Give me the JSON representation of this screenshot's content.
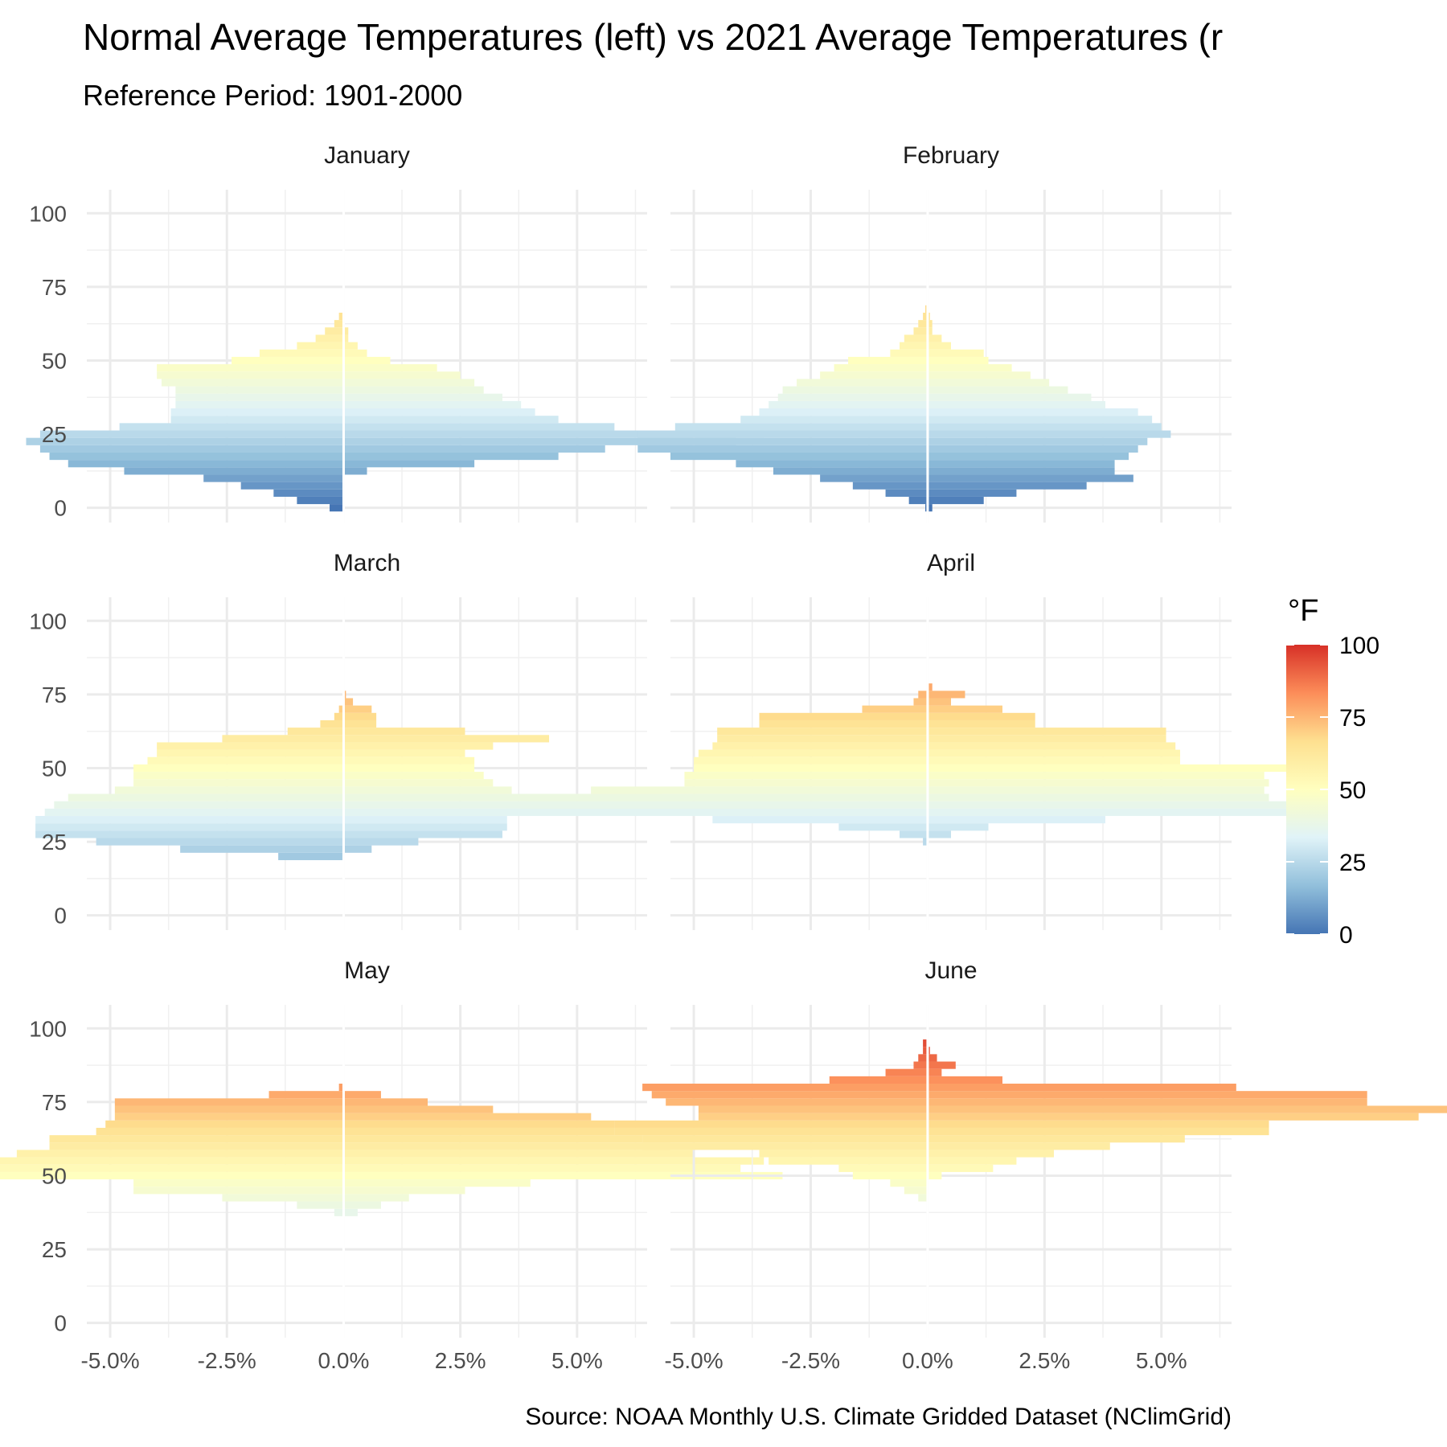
{
  "title": "Normal Average Temperatures (left) vs 2021 Average Temperatures (r",
  "subtitle": "Reference Period: 1901-2000",
  "caption": "Source: NOAA Monthly U.S. Climate Gridded Dataset (NClimGrid)",
  "legend": {
    "title": "°F",
    "ticks": [
      "0",
      "25",
      "50",
      "75",
      "100"
    ],
    "range": [
      0,
      100
    ],
    "palette": [
      "#4575b4",
      "#91bfdb",
      "#e0f3f8",
      "#ffffbf",
      "#fee090",
      "#fc8d59",
      "#d73027"
    ]
  },
  "chart_data": {
    "type": "bar",
    "orientation": "horizontal",
    "layout": "faceted population pyramid (2 columns x 3 rows)",
    "xlim": [
      -5.5,
      6.5
    ],
    "ylim": [
      -5,
      108
    ],
    "bin_width": 2.5,
    "x_ticks": [
      "-5.0%",
      "-2.5%",
      "0.0%",
      "2.5%",
      "5.0%"
    ],
    "x_tick_values": [
      -5,
      -2.5,
      0,
      2.5,
      5
    ],
    "y_ticks": [
      "0",
      "25",
      "50",
      "75",
      "100"
    ],
    "y_tick_values": [
      0,
      25,
      50,
      75,
      100
    ],
    "grid": true,
    "panels": [
      {
        "name": "January",
        "temperatures": [
          0,
          2.5,
          5,
          7.5,
          10,
          12.5,
          15,
          17.5,
          20,
          22.5,
          25,
          27.5,
          30,
          32.5,
          35,
          37.5,
          40,
          42.5,
          45,
          47.5,
          50,
          52.5,
          55,
          57.5,
          60,
          62.5,
          65,
          67.5
        ],
        "normal": [
          0.3,
          1.0,
          1.5,
          2.2,
          3.0,
          4.7,
          5.9,
          6.3,
          6.5,
          6.8,
          6.5,
          4.8,
          3.7,
          3.7,
          3.6,
          3.6,
          3.6,
          3.9,
          4.0,
          4.0,
          2.4,
          1.8,
          1.0,
          0.6,
          0.4,
          0.2,
          0.1,
          0.0
        ],
        "year_2021": [
          0.0,
          0.0,
          0.0,
          0.0,
          0.0,
          0.5,
          2.8,
          4.6,
          5.6,
          8.4,
          9.0,
          5.8,
          4.6,
          4.1,
          3.8,
          3.4,
          3.0,
          2.8,
          2.5,
          2.0,
          1.0,
          0.5,
          0.3,
          0.1,
          0.1,
          0.0,
          0.0,
          0.0
        ]
      },
      {
        "name": "February",
        "temperatures": [
          0,
          2.5,
          5,
          7.5,
          10,
          12.5,
          15,
          17.5,
          20,
          22.5,
          25,
          27.5,
          30,
          32.5,
          35,
          37.5,
          40,
          42.5,
          45,
          47.5,
          50,
          52.5,
          55,
          57.5,
          60,
          62.5,
          65,
          67.5,
          70,
          72.5
        ],
        "normal": [
          0.05,
          0.4,
          0.9,
          1.6,
          2.3,
          3.3,
          4.1,
          5.5,
          6.2,
          6.2,
          6.2,
          5.4,
          4.0,
          3.6,
          3.4,
          3.2,
          3.1,
          2.8,
          2.3,
          2.0,
          1.7,
          0.8,
          0.6,
          0.5,
          0.3,
          0.2,
          0.1,
          0.05,
          0.0,
          0.0
        ],
        "year_2021": [
          0.1,
          1.2,
          1.9,
          3.4,
          4.4,
          4.0,
          4.0,
          4.3,
          4.5,
          4.7,
          5.2,
          5.0,
          4.8,
          4.5,
          3.8,
          3.5,
          3.0,
          2.6,
          2.2,
          1.8,
          1.3,
          1.2,
          0.5,
          0.3,
          0.1,
          0.1,
          0.05,
          0.0,
          0.0,
          0.0
        ]
      },
      {
        "name": "March",
        "temperatures": [
          20,
          22.5,
          25,
          27.5,
          30,
          32.5,
          35,
          37.5,
          40,
          42.5,
          45,
          47.5,
          50,
          52.5,
          55,
          57.5,
          60,
          62.5,
          65,
          67.5,
          70,
          72.5,
          75
        ],
        "normal": [
          1.4,
          3.5,
          5.3,
          6.6,
          6.6,
          6.6,
          6.4,
          6.2,
          5.9,
          4.9,
          4.5,
          4.5,
          4.5,
          4.2,
          4.0,
          4.0,
          2.6,
          1.2,
          0.5,
          0.2,
          0.1,
          0.0,
          0.0
        ],
        "year_2021": [
          0.0,
          0.6,
          1.6,
          3.4,
          3.5,
          3.5,
          7.2,
          10.2,
          6.8,
          3.6,
          3.2,
          3.0,
          2.8,
          2.8,
          2.6,
          3.2,
          4.4,
          2.6,
          0.7,
          0.7,
          0.6,
          0.2,
          0.05
        ]
      },
      {
        "name": "April",
        "temperatures": [
          25,
          27.5,
          30,
          32.5,
          35,
          37.5,
          40,
          42.5,
          45,
          47.5,
          50,
          52.5,
          55,
          57.5,
          60,
          62.5,
          65,
          67.5,
          70,
          72.5,
          75,
          77.5
        ],
        "normal": [
          0.1,
          0.6,
          1.9,
          4.6,
          9.0,
          8.7,
          8.6,
          7.2,
          5.2,
          5.2,
          5.0,
          5.0,
          4.9,
          4.6,
          4.5,
          4.5,
          3.6,
          3.6,
          1.4,
          0.3,
          0.2,
          0.0
        ],
        "year_2021": [
          0.0,
          0.5,
          1.3,
          3.8,
          8.3,
          7.7,
          7.3,
          7.2,
          7.3,
          7.2,
          7.7,
          5.4,
          5.4,
          5.3,
          5.1,
          5.1,
          2.3,
          2.3,
          1.6,
          0.5,
          0.8,
          0.1
        ]
      },
      {
        "name": "May",
        "temperatures": [
          37.5,
          40,
          42.5,
          45,
          47.5,
          50,
          52.5,
          55,
          57.5,
          60,
          62.5,
          65,
          67.5,
          70,
          72.5,
          75,
          77.5,
          80
        ],
        "normal": [
          0.2,
          1.0,
          2.6,
          4.5,
          4.5,
          9.1,
          9.2,
          9.2,
          7.0,
          6.3,
          6.3,
          5.3,
          5.1,
          4.9,
          4.9,
          4.9,
          1.6,
          0.1
        ],
        "year_2021": [
          0.3,
          0.8,
          1.4,
          2.6,
          4.0,
          9.4,
          8.5,
          9.0,
          7.5,
          7.0,
          6.4,
          5.8,
          5.8,
          5.3,
          3.2,
          1.8,
          0.8,
          0.0
        ]
      },
      {
        "name": "June",
        "temperatures": [
          42.5,
          45,
          47.5,
          50,
          52.5,
          55,
          57.5,
          60,
          62.5,
          65,
          67.5,
          70,
          72.5,
          75,
          77.5,
          80,
          82.5,
          85,
          87.5,
          90,
          92.5,
          95
        ],
        "normal": [
          0.2,
          0.5,
          0.8,
          1.6,
          1.9,
          3.4,
          3.6,
          6.1,
          6.1,
          6.7,
          6.7,
          4.9,
          4.9,
          5.6,
          5.9,
          6.1,
          2.1,
          0.9,
          0.3,
          0.2,
          0.1,
          0.1
        ],
        "year_2021": [
          0.0,
          0.0,
          0.0,
          0.3,
          1.4,
          1.9,
          2.7,
          3.9,
          5.5,
          7.3,
          7.3,
          10.5,
          13.2,
          9.4,
          9.4,
          6.6,
          1.6,
          0.3,
          0.6,
          0.2,
          0.05,
          0.0
        ]
      }
    ]
  }
}
